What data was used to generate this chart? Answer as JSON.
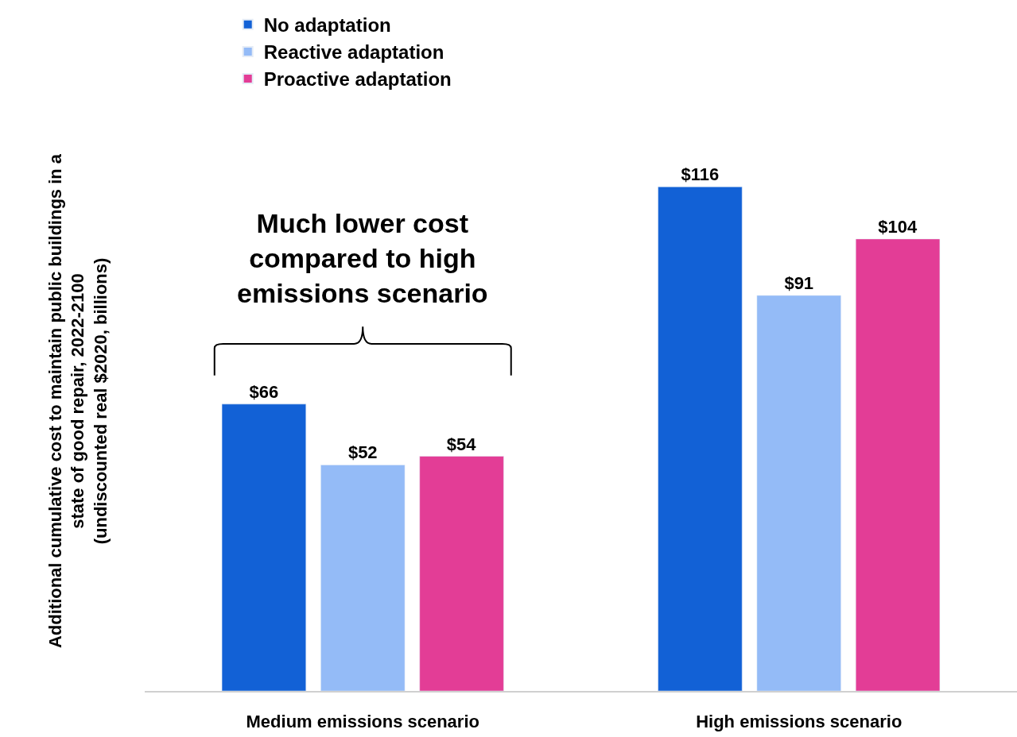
{
  "chart_data": {
    "type": "bar",
    "ylabel": "Additional cumulative cost to maintain public buildings in a\nstate of good repair, 2022-2100\n(undiscounted real $2020, billions)",
    "categories": [
      "Medium emissions scenario",
      "High emissions scenario"
    ],
    "series": [
      {
        "name": "No adaptation",
        "color": "#1261d6",
        "values": [
          66,
          116
        ],
        "value_labels": [
          "$66",
          "$116"
        ]
      },
      {
        "name": "Reactive adaptation",
        "color": "#94bbf7",
        "values": [
          52,
          91
        ],
        "value_labels": [
          "$52",
          "$91"
        ]
      },
      {
        "name": "Proactive adaptation",
        "color": "#e33d96",
        "values": [
          54,
          104
        ],
        "value_labels": [
          "$54",
          "$104"
        ]
      }
    ],
    "annotations": [
      "Much lower cost\ncompared to high\nemissions scenario"
    ],
    "legend": "top left"
  }
}
